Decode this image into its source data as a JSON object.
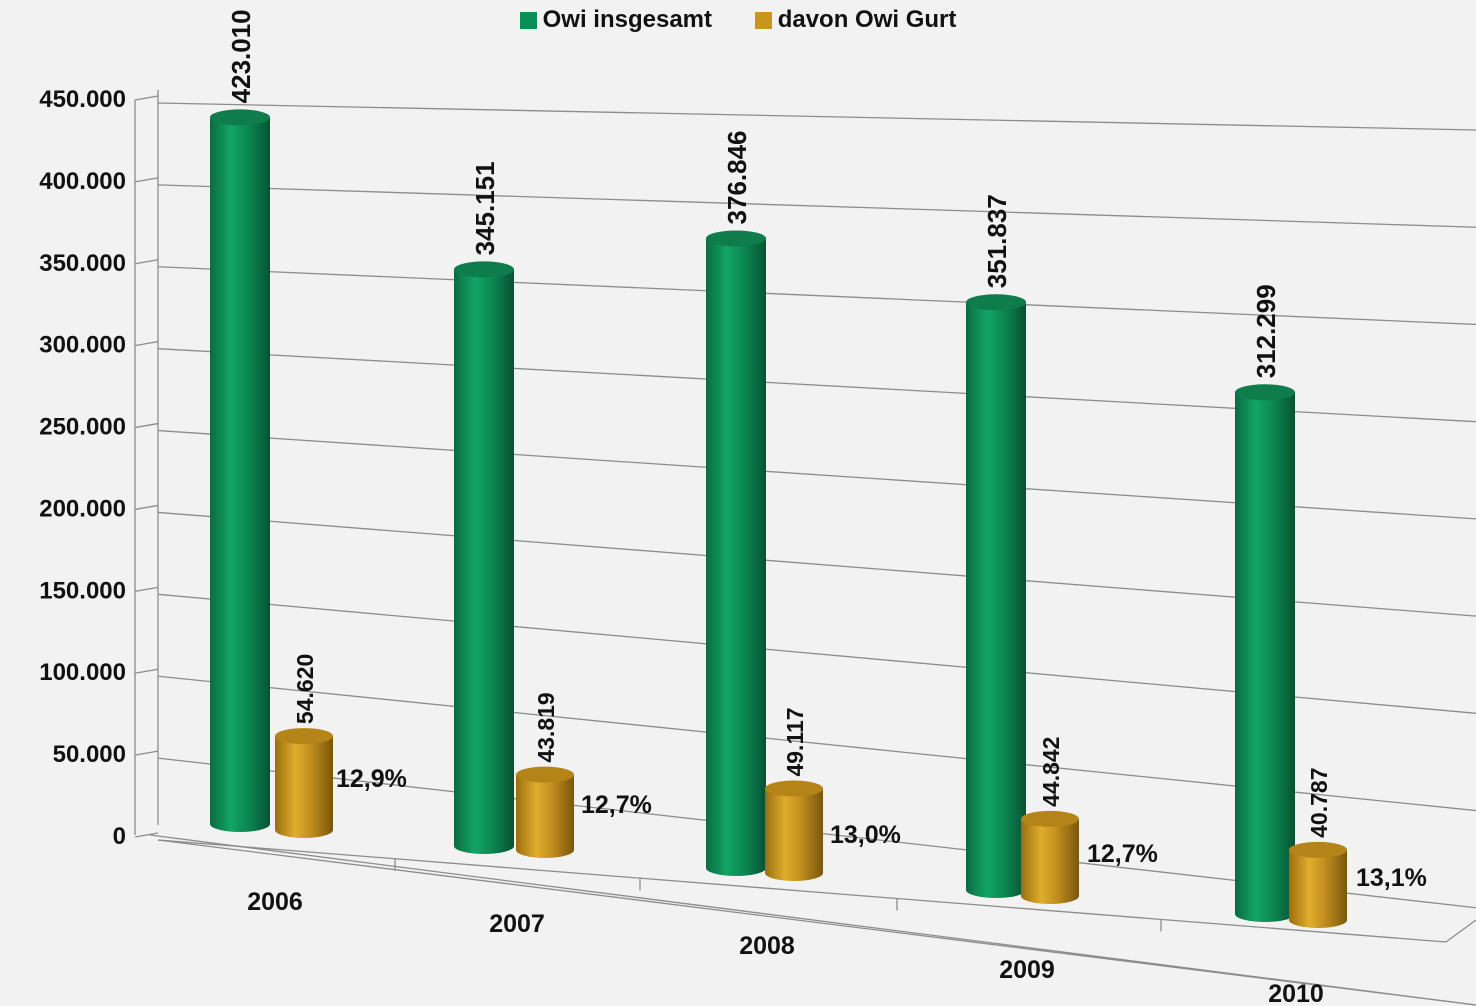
{
  "chart_data": {
    "type": "bar",
    "categories": [
      "2006",
      "2007",
      "2008",
      "2009",
      "2010"
    ],
    "series": [
      {
        "name": "Owi insgesamt",
        "values": [
          423010,
          345151,
          376846,
          351837,
          312299
        ],
        "labels": [
          "423.010",
          "345.151",
          "376.846",
          "351.837",
          "312.299"
        ],
        "color": "#0a8f58"
      },
      {
        "name": "davon Owi Gurt",
        "values": [
          54620,
          43819,
          49117,
          44842,
          40787
        ],
        "labels": [
          "54.620",
          "43.819",
          "49.117",
          "44.842",
          "40.787"
        ],
        "percent_labels": [
          "12,9%",
          "12,7%",
          "13,0%",
          "12,7%",
          "13,1%"
        ],
        "color": "#c9961c"
      }
    ],
    "ylim": [
      0,
      450000
    ],
    "yticks": [
      "0",
      "50.000",
      "100.000",
      "150.000",
      "200.000",
      "250.000",
      "300.000",
      "350.000",
      "400.000",
      "450.000"
    ],
    "grid": true,
    "legend_position": "top-center",
    "style": "3d-cylinder"
  }
}
